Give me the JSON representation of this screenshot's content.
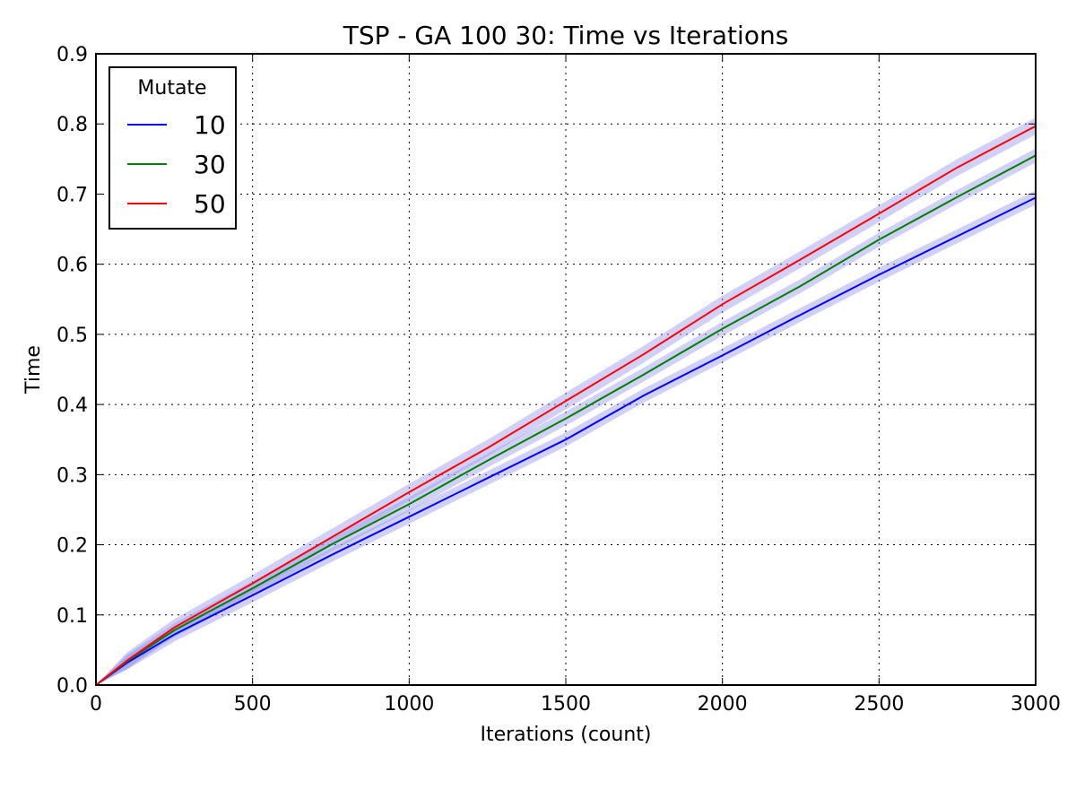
{
  "chart_data": {
    "type": "line",
    "title": "TSP - GA 100 30: Time vs Iterations",
    "xlabel": "Iterations (count)",
    "ylabel": "Time",
    "xlim": [
      0,
      3000
    ],
    "ylim": [
      0,
      0.9
    ],
    "xticks": [
      0,
      500,
      1000,
      1500,
      2000,
      2500,
      3000
    ],
    "xtick_labels": [
      "0",
      "500",
      "1000",
      "1500",
      "2000",
      "2500",
      "3000"
    ],
    "yticks": [
      0,
      0.1,
      0.2,
      0.3,
      0.4,
      0.5,
      0.6,
      0.7,
      0.8,
      0.9
    ],
    "ytick_labels": [
      "0.0",
      "0.1",
      "0.2",
      "0.3",
      "0.4",
      "0.5",
      "0.6",
      "0.7",
      "0.8",
      "0.9"
    ],
    "grid": true,
    "legend": {
      "title": "Mutate",
      "placement": "top-left"
    },
    "band_color": "#9999ee",
    "x": [
      0,
      100,
      250,
      500,
      750,
      1000,
      1250,
      1500,
      1750,
      2000,
      2250,
      2500,
      2750,
      3000
    ],
    "series": [
      {
        "name": "10",
        "color": "#0000ff",
        "values": [
          0.0,
          0.032,
          0.072,
          0.128,
          0.185,
          0.24,
          0.295,
          0.35,
          0.413,
          0.47,
          0.528,
          0.585,
          0.64,
          0.695
        ],
        "band": 0.01
      },
      {
        "name": "30",
        "color": "#008000",
        "values": [
          0.0,
          0.034,
          0.078,
          0.138,
          0.2,
          0.258,
          0.32,
          0.38,
          0.443,
          0.508,
          0.569,
          0.635,
          0.696,
          0.755
        ],
        "band": 0.01
      },
      {
        "name": "50",
        "color": "#ff0000",
        "values": [
          0.0,
          0.035,
          0.082,
          0.145,
          0.21,
          0.275,
          0.338,
          0.405,
          0.472,
          0.543,
          0.607,
          0.672,
          0.738,
          0.797
        ],
        "band": 0.012
      }
    ]
  }
}
